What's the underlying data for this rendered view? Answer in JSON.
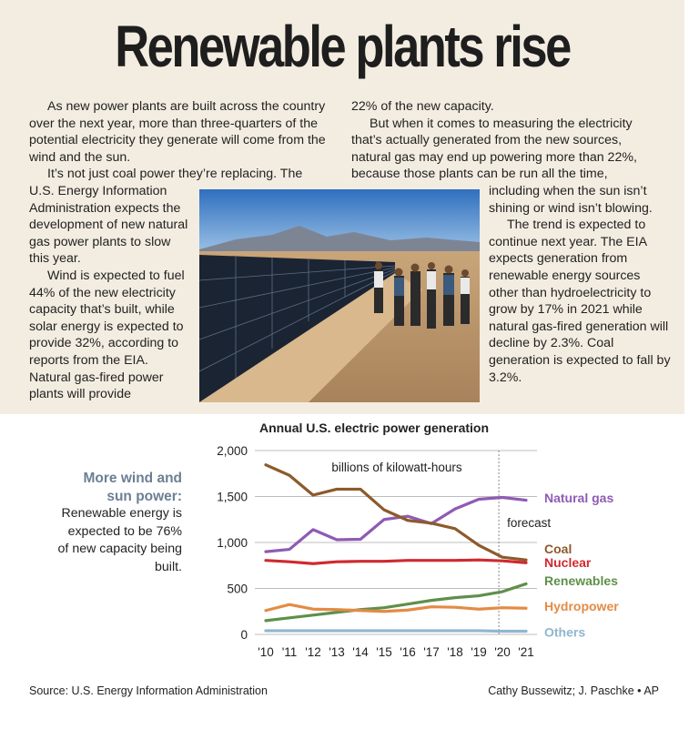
{
  "headline": "Renewable plants rise",
  "article": {
    "col1": [
      "As new power plants are built across the country over the next year, more than three-quarters of the potential electricity they generate will come from the wind and the sun.",
      "It’s not just coal power they’re replacing. The"
    ],
    "col1_narrow": [
      "U.S. Energy Information Administration expects the development of new natural gas power plants to slow this year.",
      "Wind is expected to fuel 44% of the new electricity capacity that’s built, while solar energy is expected to provide 32%, according to reports from the EIA. Natural gas-fired power plants will provide"
    ],
    "col2": [
      "22% of the new capacity.",
      "But when it comes to measuring the electricity that’s actually generated from the new sources, natural gas may end up powering more than 22%, because those plants can be run all the time,"
    ],
    "col2_narrow": [
      "including when the sun isn’t shining or wind isn’t blowing.",
      "The trend is expected to continue next year. The EIA expects generation from renewable energy sources other than hydroelectricity to grow by 17% in 2021 while natural gas-fired generation will decline by 2.3%. Coal generation is expected to fall by 3.2%."
    ]
  },
  "sidebar": {
    "headline": "More wind and sun power:",
    "text": "Renewable energy is expected to be 76% of new capacity being built."
  },
  "credits": {
    "source": "Source: U.S. Energy Information Administration",
    "byline": "Cathy Bussewitz; J. Paschke • AP"
  },
  "chart_data": {
    "type": "line",
    "title": "Annual U.S. electric power generation",
    "units_label": "billions of kilowatt-hours",
    "forecast_label": "forecast",
    "x_tick_labels": [
      "'10",
      "'11",
      "'12",
      "'13",
      "'14",
      "'15",
      "'16",
      "'17",
      "'18",
      "'19",
      "'20",
      "'21"
    ],
    "x": [
      2010,
      2011,
      2012,
      2013,
      2014,
      2015,
      2016,
      2017,
      2018,
      2019,
      2020,
      2021
    ],
    "ylim": [
      0,
      2000
    ],
    "y_ticks": [
      0,
      500,
      1000,
      1500,
      2000
    ],
    "y_tick_labels": [
      "0",
      "500",
      "1,000",
      "1,500",
      "2,000"
    ],
    "forecast_start": 2019.85,
    "series": [
      {
        "name": "Natural gas",
        "color": "#8e5bb5",
        "values": [
          900,
          925,
          1140,
          1030,
          1035,
          1250,
          1285,
          1205,
          1365,
          1470,
          1490,
          1460
        ]
      },
      {
        "name": "Coal",
        "color": "#8d5a2b",
        "values": [
          1845,
          1730,
          1515,
          1580,
          1580,
          1355,
          1240,
          1210,
          1150,
          970,
          840,
          810
        ]
      },
      {
        "name": "Nuclear",
        "color": "#cf2a2f",
        "values": [
          805,
          790,
          770,
          790,
          795,
          795,
          805,
          805,
          805,
          810,
          800,
          780
        ]
      },
      {
        "name": "Renewables",
        "color": "#5f8f4a",
        "values": [
          150,
          180,
          210,
          240,
          270,
          290,
          330,
          370,
          400,
          420,
          465,
          550
        ]
      },
      {
        "name": "Hydropower",
        "color": "#e38b45",
        "values": [
          260,
          325,
          275,
          270,
          260,
          250,
          265,
          300,
          295,
          275,
          290,
          285
        ]
      },
      {
        "name": "Others",
        "color": "#8fb6cf",
        "values": [
          40,
          40,
          40,
          40,
          40,
          40,
          40,
          40,
          40,
          40,
          35,
          35
        ]
      }
    ]
  }
}
